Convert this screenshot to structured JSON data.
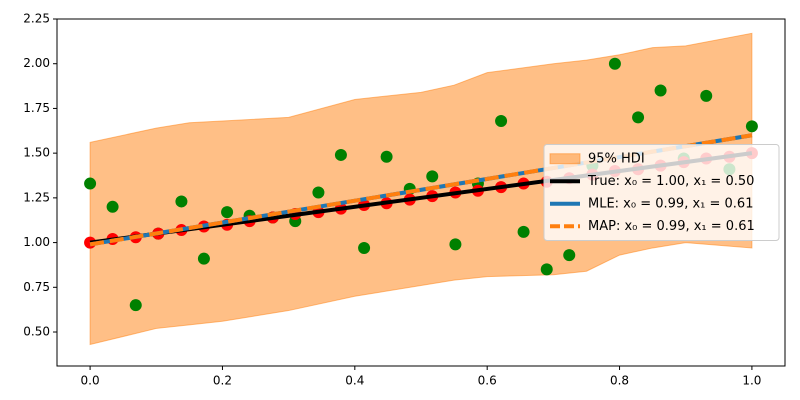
{
  "chart_data": {
    "type": "line",
    "xlim": [
      -0.05,
      1.05
    ],
    "ylim": [
      0.31,
      2.25
    ],
    "xticks": [
      {
        "value": 0,
        "label": "0.0"
      },
      {
        "value": 0.2,
        "label": "0.2"
      },
      {
        "value": 0.4,
        "label": "0.4"
      },
      {
        "value": 0.6,
        "label": "0.6"
      },
      {
        "value": 0.8,
        "label": "0.8"
      },
      {
        "value": 1,
        "label": "1.0"
      }
    ],
    "yticks": [
      {
        "value": 0.5,
        "label": "0.50"
      },
      {
        "value": 0.75,
        "label": "0.75"
      },
      {
        "value": 1,
        "label": "1.00"
      },
      {
        "value": 1.25,
        "label": "1.25"
      },
      {
        "value": 1.5,
        "label": "1.50"
      },
      {
        "value": 1.75,
        "label": "1.75"
      },
      {
        "value": 2,
        "label": "2.00"
      },
      {
        "value": 2.25,
        "label": "2.25"
      }
    ],
    "legend": "center right",
    "x": [
      0,
      0.034,
      0.069,
      0.103,
      0.138,
      0.172,
      0.207,
      0.241,
      0.276,
      0.31,
      0.345,
      0.379,
      0.414,
      0.448,
      0.483,
      0.517,
      0.552,
      0.586,
      0.621,
      0.655,
      0.69,
      0.724,
      0.759,
      0.793,
      0.828,
      0.862,
      0.897,
      0.931,
      0.966,
      1
    ],
    "series": [
      {
        "type": "area",
        "name": "95% HDI",
        "color": "#ff7f0e",
        "x": [
          0,
          0.1,
          0.15,
          0.2,
          0.3,
          0.4,
          0.5,
          0.55,
          0.6,
          0.7,
          0.75,
          0.8,
          0.85,
          0.9,
          1
        ],
        "upper": [
          1.56,
          1.64,
          1.67,
          1.68,
          1.7,
          1.8,
          1.84,
          1.88,
          1.95,
          2.0,
          2.02,
          2.05,
          2.09,
          2.1,
          2.17
        ],
        "lower": [
          0.43,
          0.52,
          0.54,
          0.56,
          0.62,
          0.7,
          0.76,
          0.79,
          0.81,
          0.82,
          0.84,
          0.93,
          0.97,
          1.0,
          0.97
        ]
      },
      {
        "type": "scatter",
        "color": "#008000",
        "values": [
          1.33,
          1.2,
          0.65,
          1.05,
          1.23,
          0.91,
          1.17,
          1.15,
          1.14,
          1.12,
          1.28,
          1.49,
          0.97,
          1.48,
          1.3,
          1.37,
          0.99,
          1.33,
          1.68,
          1.06,
          0.85,
          0.93,
          1.43,
          2.0,
          1.7,
          1.85,
          1.47,
          1.82,
          1.41,
          1.65
        ]
      },
      {
        "type": "scatter",
        "color": "#ff0000",
        "values": [
          1.0,
          1.02,
          1.03,
          1.05,
          1.07,
          1.09,
          1.1,
          1.12,
          1.14,
          1.16,
          1.17,
          1.19,
          1.21,
          1.22,
          1.24,
          1.26,
          1.28,
          1.29,
          1.31,
          1.33,
          1.34,
          1.36,
          1.38,
          1.4,
          1.41,
          1.43,
          1.45,
          1.47,
          1.48,
          1.5
        ]
      },
      {
        "type": "line",
        "name": "True: x₀ = 1.00, x₁ = 0.50",
        "color": "#000000",
        "x": [
          0,
          1
        ],
        "values": [
          1.0,
          1.5
        ]
      },
      {
        "type": "line",
        "name": "MLE: x₀ = 0.99, x₁ = 0.61",
        "color": "#1f77b4",
        "x": [
          0,
          1
        ],
        "values": [
          0.99,
          1.6
        ]
      },
      {
        "type": "line",
        "name": "MAP: x₀ = 0.99, x₁ = 0.61",
        "color": "#ff7f0e",
        "dashed": true,
        "x": [
          0,
          1
        ],
        "values": [
          0.99,
          1.6
        ]
      }
    ]
  }
}
